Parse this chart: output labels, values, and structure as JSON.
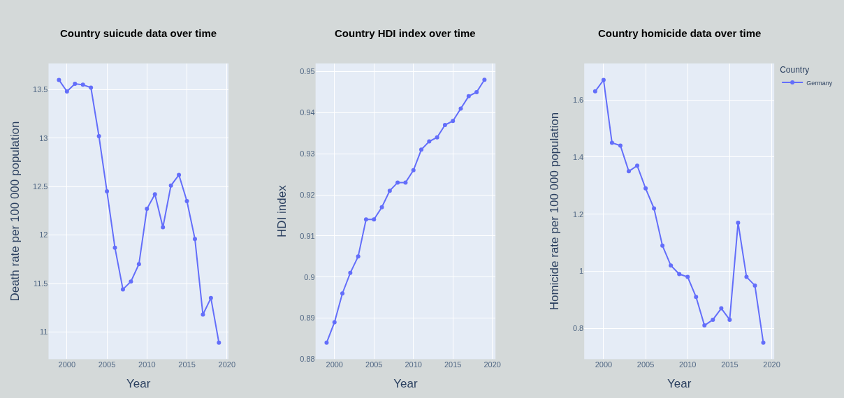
{
  "chart_data": [
    {
      "type": "line",
      "title": "Country suicude data over time",
      "xlabel": "Year",
      "ylabel": "Death rate per 100 000 population",
      "x": [
        1999,
        2000,
        2001,
        2002,
        2003,
        2004,
        2005,
        2006,
        2007,
        2008,
        2009,
        2010,
        2011,
        2012,
        2013,
        2014,
        2015,
        2016,
        2017,
        2018,
        2019
      ],
      "series": [
        {
          "color": "#636efa",
          "values": [
            13.6,
            13.48,
            13.56,
            13.55,
            13.52,
            13.02,
            12.45,
            11.87,
            11.44,
            11.52,
            11.7,
            12.27,
            12.42,
            12.08,
            12.51,
            12.62,
            12.35,
            11.96,
            11.18,
            11.35,
            10.89
          ]
        }
      ],
      "xlim": [
        1997.7,
        2020.2
      ],
      "xticks": [
        2000,
        2005,
        2010,
        2015,
        2020
      ],
      "ylim": [
        10.72,
        13.77
      ],
      "yticks": [
        11,
        11.5,
        12,
        12.5,
        13,
        13.5
      ],
      "grid": true,
      "marker": "circle",
      "line_style": "solid"
    },
    {
      "type": "line",
      "title": "Country HDI index over time",
      "xlabel": "Year",
      "ylabel": "HDI index",
      "x": [
        1999,
        2000,
        2001,
        2002,
        2003,
        2004,
        2005,
        2006,
        2007,
        2008,
        2009,
        2010,
        2011,
        2012,
        2013,
        2014,
        2015,
        2016,
        2017,
        2018,
        2019
      ],
      "series": [
        {
          "color": "#636efa",
          "values": [
            0.884,
            0.889,
            0.896,
            0.901,
            0.905,
            0.914,
            0.914,
            0.917,
            0.921,
            0.923,
            0.923,
            0.926,
            0.931,
            0.933,
            0.934,
            0.937,
            0.938,
            0.941,
            0.944,
            0.945,
            0.948
          ]
        }
      ],
      "xlim": [
        1997.6,
        2020.4
      ],
      "xticks": [
        2000,
        2005,
        2010,
        2015,
        2020
      ],
      "ylim": [
        0.88,
        0.952
      ],
      "yticks": [
        0.88,
        0.89,
        {
          "value": 0.9,
          "label": "0.9"
        },
        0.91,
        0.92,
        0.93,
        0.94,
        0.95
      ],
      "grid": true,
      "marker": "circle",
      "line_style": "solid"
    },
    {
      "type": "line",
      "title": "Country homicide data over time",
      "xlabel": "Year",
      "ylabel": "Homicide rate per 100 000 population",
      "legend_title": "Country",
      "legend": "top right",
      "x": [
        1999,
        2000,
        2001,
        2002,
        2003,
        2004,
        2005,
        2006,
        2007,
        2008,
        2009,
        2010,
        2011,
        2012,
        2013,
        2014,
        2015,
        2016,
        2017,
        2018,
        2019
      ],
      "series": [
        {
          "name": "Germany",
          "color": "#636efa",
          "values": [
            1.63,
            1.67,
            1.45,
            1.44,
            1.35,
            1.37,
            1.29,
            1.22,
            1.09,
            1.02,
            0.99,
            0.98,
            0.91,
            0.81,
            0.83,
            0.87,
            0.83,
            1.17,
            0.98,
            0.95,
            0.75
          ]
        }
      ],
      "xlim": [
        1997.7,
        2020.3
      ],
      "xticks": [
        2000,
        2005,
        2010,
        2015,
        2020
      ],
      "ylim": [
        0.692,
        1.728
      ],
      "yticks": [
        0.8,
        1,
        1.2,
        1.4,
        1.6
      ],
      "grid": true,
      "marker": "circle",
      "line_style": "solid"
    }
  ]
}
